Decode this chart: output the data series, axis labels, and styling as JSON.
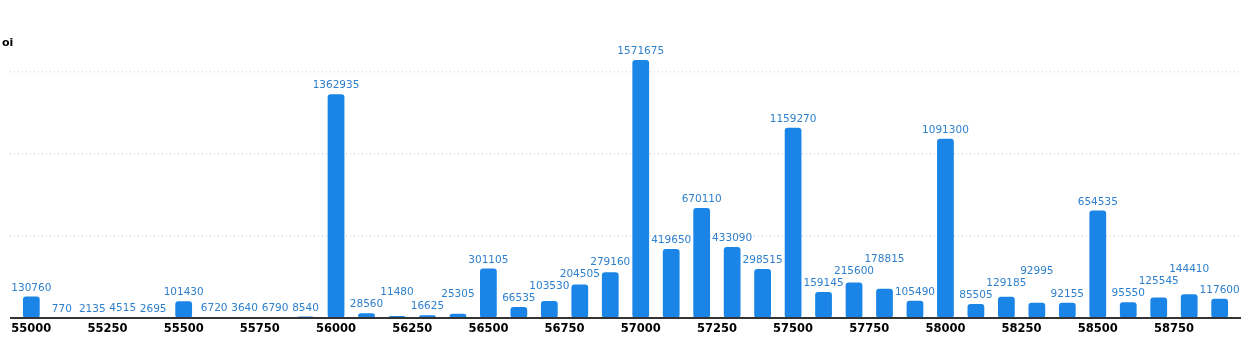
{
  "chart_data": {
    "type": "bar",
    "ylabel": "oi",
    "x": [
      55000,
      55100,
      55200,
      55300,
      55400,
      55500,
      55600,
      55700,
      55800,
      55900,
      56000,
      56100,
      56200,
      56300,
      56400,
      56500,
      56600,
      56700,
      56800,
      56900,
      57000,
      57100,
      57200,
      57300,
      57400,
      57500,
      57600,
      57700,
      57800,
      57900,
      58000,
      58100,
      58200,
      58300,
      58400,
      58500,
      58600,
      58700,
      58800,
      58900
    ],
    "values": [
      130760,
      770,
      2135,
      4515,
      2695,
      101430,
      6720,
      3640,
      6790,
      8540,
      1362935,
      28560,
      11480,
      16625,
      25305,
      301105,
      66535,
      103530,
      204505,
      279160,
      1571675,
      419650,
      670110,
      433090,
      298515,
      1159270,
      159145,
      215600,
      178815,
      105490,
      1091300,
      85505,
      129185,
      92995,
      92155,
      654535,
      95550,
      125545,
      144410,
      117600
    ],
    "color": "#1a85e6",
    "data_labels": true,
    "xlim": [
      54930,
      58970
    ],
    "xticks": [
      55000,
      55250,
      55500,
      55750,
      56000,
      56250,
      56500,
      56750,
      57000,
      57250,
      57500,
      57750,
      58000,
      58250,
      58500,
      58750
    ],
    "yticks": [
      {
        "value": 0,
        "label": null
      },
      {
        "value": 500000,
        "label": null
      },
      {
        "value": 1000000,
        "label": null
      },
      {
        "value": 1500000,
        "label": null
      }
    ],
    "grid": "y",
    "tick_labels": "x"
  }
}
